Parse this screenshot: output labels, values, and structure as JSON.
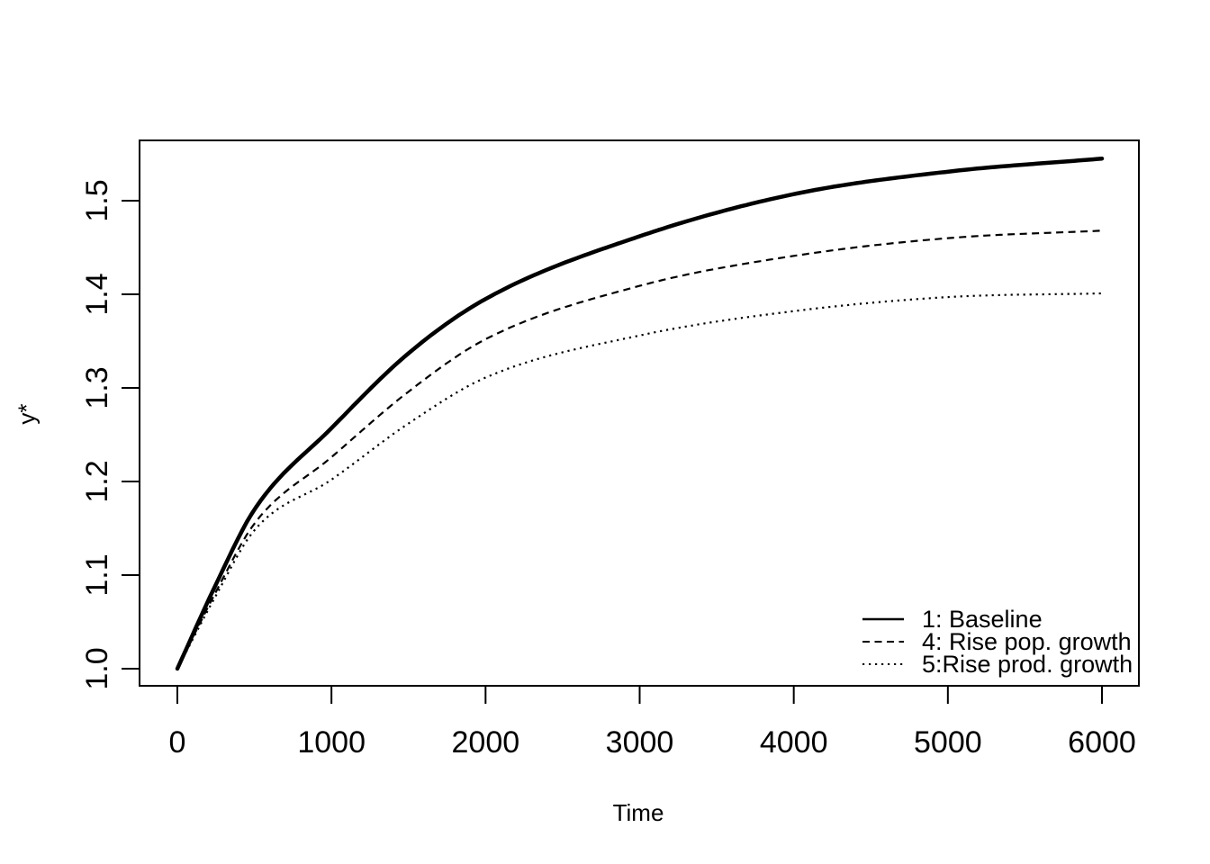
{
  "colors": {
    "foreground": "#000000",
    "background": "#ffffff"
  },
  "chart_data": {
    "type": "line",
    "title": "",
    "xlabel": "Time",
    "ylabel": "y*",
    "xlim": [
      0,
      6000
    ],
    "ylim": [
      1.0,
      1.55
    ],
    "grid": false,
    "legend_position": "bottom-right-inside",
    "x_ticks": [
      "0",
      "1000",
      "2000",
      "3000",
      "4000",
      "5000",
      "6000"
    ],
    "y_ticks": [
      "1.0",
      "1.1",
      "1.2",
      "1.3",
      "1.4",
      "1.5"
    ],
    "x": [
      0,
      250,
      500,
      1000,
      1500,
      2000,
      3000,
      4000,
      5000,
      6000
    ],
    "series": [
      {
        "name": "1: Baseline",
        "style": "solid",
        "line_width": 4.5,
        "color": "#000000",
        "values": [
          1.0,
          1.09,
          1.17,
          1.257,
          1.337,
          1.395,
          1.462,
          1.507,
          1.531,
          1.545
        ]
      },
      {
        "name": "4: Rise pop. growth",
        "style": "dashed",
        "line_width": 2.2,
        "color": "#000000",
        "values": [
          1.0,
          1.082,
          1.155,
          1.226,
          1.296,
          1.352,
          1.409,
          1.441,
          1.46,
          1.468
        ]
      },
      {
        "name": "5:Rise prod. growth",
        "style": "dotted",
        "line_width": 2.2,
        "color": "#000000",
        "values": [
          1.0,
          1.078,
          1.148,
          1.202,
          1.262,
          1.311,
          1.356,
          1.382,
          1.397,
          1.401
        ]
      }
    ]
  }
}
